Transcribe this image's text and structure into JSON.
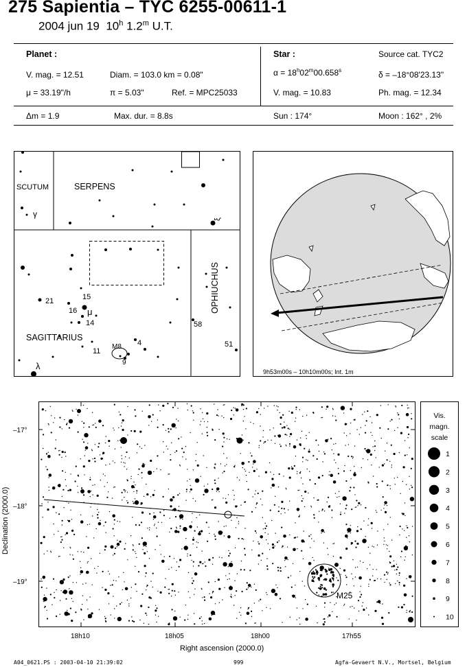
{
  "header": {
    "title": "275 Sapientia  –  TYC 6255-00611-1",
    "date": "2004 jun 19",
    "hours": "10",
    "hours_unit": "h",
    "minutes": "1.2",
    "minutes_unit": "m",
    "time_system": "U.T."
  },
  "planet": {
    "heading": "Planet :",
    "vmag": "V. mag. = 12.51",
    "diam": "Diam. = 103.0 km = 0.08\"",
    "mu": "μ =  33.19\"/h",
    "pi": "π =  5.03\"",
    "ref": "Ref. = MPC25033"
  },
  "star": {
    "heading": "Star :",
    "source": "Source cat.  TYC2",
    "alpha_prefix": "α = 18",
    "alpha_h": "h",
    "alpha_mid": "02",
    "alpha_m": "m",
    "alpha_sec": "00.658",
    "alpha_s": "s",
    "delta": "δ = –18°08'23.13\"",
    "vmag": "V. mag. = 10.83",
    "phmag": "Ph. mag. = 12.34"
  },
  "summary": {
    "dm": "Δm = 1.9",
    "maxdur": "Max. dur. = 8.8s",
    "sun": "Sun : 174°",
    "moon": "Moon : 162° ,  2%"
  },
  "finder": {
    "constellations": [
      "SCUTUM",
      "SERPENS",
      "OPHIUCHUS",
      "SAGITTARIUS"
    ],
    "star_labels": [
      "γ",
      "ξ",
      "15",
      "21",
      "16",
      "μ",
      "14",
      "58",
      "11",
      "4",
      "51",
      "λ",
      "M8",
      "9"
    ]
  },
  "globe": {
    "caption": "9h53m00s – 10h10m00s; Int.  1m"
  },
  "chart": {
    "dec_ticks": [
      "–17°",
      "–18°",
      "–19°"
    ],
    "ra_ticks": [
      "18h10",
      "18h05",
      "18h00",
      "17h55"
    ],
    "xlabel": "Right ascension (2000.0)",
    "ylabel": "Declination (2000.0)",
    "cluster_label": "M25"
  },
  "scale": {
    "title_lines": [
      "Vis.",
      "magn.",
      "scale"
    ],
    "mags": [
      "1",
      "2",
      "3",
      "4",
      "5",
      "6",
      "7",
      "8",
      "9",
      "10"
    ]
  },
  "footer": {
    "left": "A04_0621.PS : 2003-04-10 21:39:02",
    "center": "999",
    "right": "Agfa-Gevaert N.V., Mortsel, Belgium"
  }
}
